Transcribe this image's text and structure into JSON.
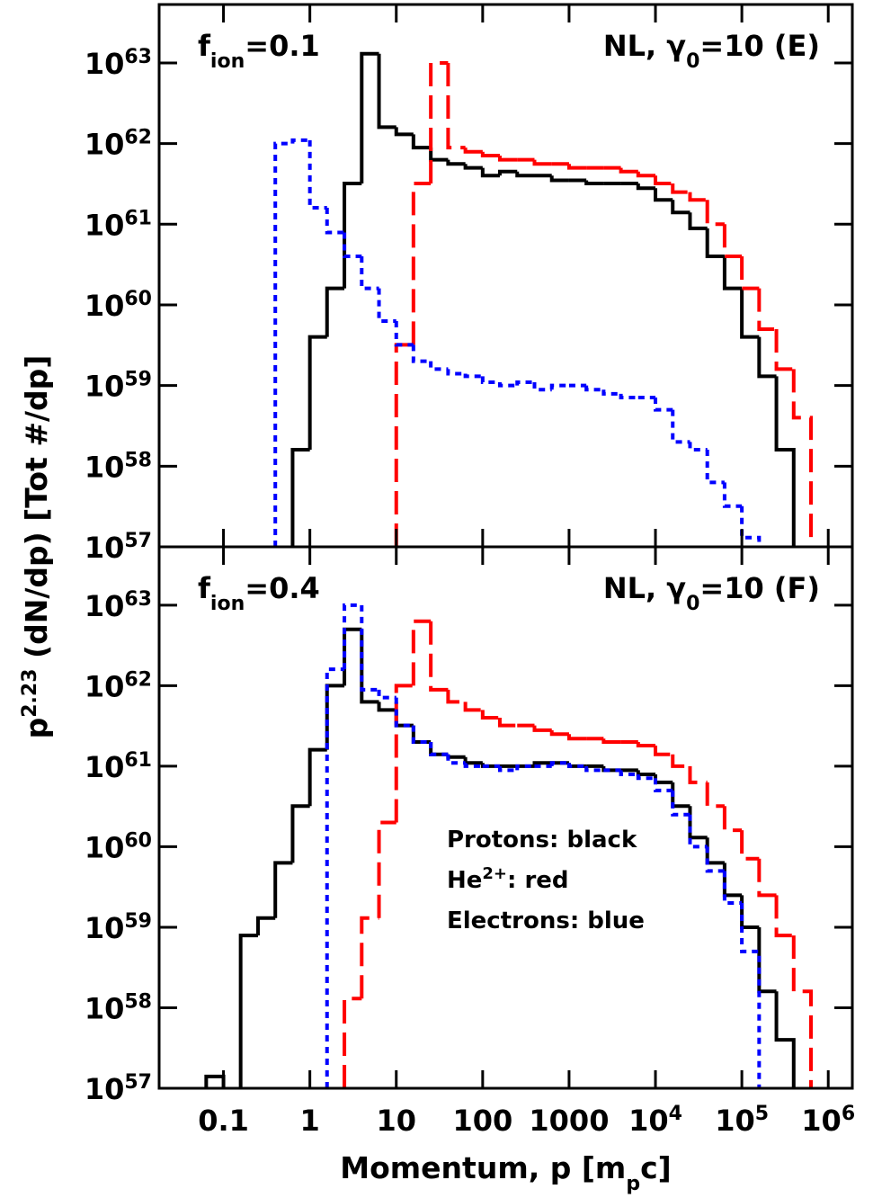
{
  "chart_data": [
    {
      "type": "histogram",
      "panel_label": [
        {
          "text": "f"
        },
        {
          "text": "ion",
          "shift": "sub"
        },
        {
          "text": "=0.1"
        }
      ],
      "title": [
        {
          "text": "NL, γ"
        },
        {
          "text": "0",
          "shift": "sub"
        },
        {
          "text": "=10 (E)"
        }
      ],
      "ylabel": [
        {
          "text": "p"
        },
        {
          "text": "2.23",
          "shift": "super"
        },
        {
          "text": " (dN/dp) [Tot #/dp]"
        }
      ],
      "xlog": true,
      "ylog": true,
      "xlim": [
        0.018,
        1900000
      ],
      "ylim": [
        1e+57,
        5.3e+63
      ],
      "xticks": [
        0.1,
        1,
        10,
        100,
        1000,
        {
          "value": 10000,
          "label": "10",
          "exponent": "4"
        },
        {
          "value": 100000,
          "label": "10",
          "exponent": "5"
        },
        {
          "value": 1000000,
          "label": "10",
          "exponent": "6"
        }
      ],
      "xticklabels": false,
      "yticks": [
        {
          "value": 1e+57,
          "label": "10",
          "exponent": "57"
        },
        {
          "value": 1e+58,
          "label": "10",
          "exponent": "58"
        },
        {
          "value": 1e+59,
          "label": "10",
          "exponent": "59"
        },
        {
          "value": 1e+60,
          "label": "10",
          "exponent": "60"
        },
        {
          "value": 1e+61,
          "label": "10",
          "exponent": "61"
        },
        {
          "value": 1e+62,
          "label": "10",
          "exponent": "62"
        },
        {
          "value": 1e+63,
          "label": "10",
          "exponent": "63"
        }
      ],
      "bins": [
        0.0631,
        0.1,
        0.158,
        0.251,
        0.398,
        0.631,
        1,
        1.58,
        2.51,
        3.98,
        6.31,
        10,
        15.8,
        25.1,
        39.8,
        63.1,
        100,
        158,
        251,
        398,
        631,
        1000,
        1585,
        2512,
        3981,
        6310,
        10000,
        15849,
        25119,
        39811,
        63096,
        100000,
        158489,
        251189,
        398107,
        630957
      ],
      "series": [
        {
          "color": "#000000",
          "linestyle": "solid",
          "values": [
            null,
            null,
            null,
            null,
            null,
            1.6e+58,
            4e+59,
            1.6e+60,
            3.2e+61,
            1.3e+63,
            1.6e+62,
            1.3e+62,
            8.9e+61,
            6.3e+61,
            5.6e+61,
            5e+61,
            4e+61,
            4.5e+61,
            4e+61,
            4e+61,
            3.5e+61,
            3.5e+61,
            3.2e+61,
            3.2e+61,
            3.2e+61,
            2.8e+61,
            2e+61,
            1.4e+61,
            8.9e+60,
            4e+60,
            1.6e+60,
            4e+59,
            1.3e+59,
            1.6e+58,
            null
          ]
        },
        {
          "color": "#ff0000",
          "linestyle": "dashed",
          "values": [
            null,
            null,
            null,
            null,
            null,
            null,
            null,
            null,
            null,
            null,
            null,
            3.2e+59,
            3.2e+61,
            1e+63,
            8.9e+61,
            7.9e+61,
            7.1e+61,
            6.3e+61,
            6.3e+61,
            5.6e+61,
            5.6e+61,
            5e+61,
            5e+61,
            5e+61,
            4.5e+61,
            4e+61,
            3.2e+61,
            2.5e+61,
            2e+61,
            1e+61,
            4e+60,
            1.6e+60,
            5e+59,
            1.6e+59,
            4e+58
          ]
        },
        {
          "color": "#0000ff",
          "linestyle": "dotted",
          "values": [
            null,
            null,
            null,
            null,
            1e+62,
            1.1e+62,
            1.6e+61,
            7.9e+60,
            4e+60,
            1.6e+60,
            6.3e+59,
            3.2e+59,
            2e+59,
            1.6e+59,
            1.4e+59,
            1.3e+59,
            1.1e+59,
            1e+59,
            1.1e+59,
            8.9e+58,
            1e+59,
            1e+59,
            8.9e+58,
            7.9e+58,
            7.1e+58,
            7.1e+58,
            5e+58,
            2e+58,
            1.6e+58,
            6.3e+57,
            3.2e+57,
            1.3e+57,
            null,
            null,
            null
          ]
        }
      ]
    },
    {
      "type": "histogram",
      "panel_label": [
        {
          "text": "f"
        },
        {
          "text": "ion",
          "shift": "sub"
        },
        {
          "text": "=0.4"
        }
      ],
      "title": [
        {
          "text": "NL, γ"
        },
        {
          "text": "0",
          "shift": "sub"
        },
        {
          "text": "=10 (F)"
        }
      ],
      "xlabel": [
        {
          "text": "Momentum, p [m"
        },
        {
          "text": "p",
          "shift": "sub"
        },
        {
          "text": "c]"
        }
      ],
      "notes": [
        [
          {
            "text": "Protons: black"
          }
        ],
        [
          {
            "text": "He"
          },
          {
            "text": "2+",
            "shift": "super"
          },
          {
            "text": ": red"
          }
        ],
        [
          {
            "text": "Electrons: blue"
          }
        ]
      ],
      "xlog": true,
      "ylog": true,
      "xlim": [
        0.018,
        1900000
      ],
      "ylim": [
        1e+57,
        5.3e+63
      ],
      "xticks": [
        0.1,
        1,
        10,
        100,
        1000,
        {
          "value": 10000,
          "label": "10",
          "exponent": "4"
        },
        {
          "value": 100000,
          "label": "10",
          "exponent": "5"
        },
        {
          "value": 1000000,
          "label": "10",
          "exponent": "6"
        }
      ],
      "xticklabels": true,
      "yticks": [
        {
          "value": 1e+57,
          "label": "10",
          "exponent": "57"
        },
        {
          "value": 1e+58,
          "label": "10",
          "exponent": "58"
        },
        {
          "value": 1e+59,
          "label": "10",
          "exponent": "59"
        },
        {
          "value": 1e+60,
          "label": "10",
          "exponent": "60"
        },
        {
          "value": 1e+61,
          "label": "10",
          "exponent": "61"
        },
        {
          "value": 1e+62,
          "label": "10",
          "exponent": "62"
        },
        {
          "value": 1e+63,
          "label": "10",
          "exponent": "63"
        }
      ],
      "bins": [
        0.0631,
        0.1,
        0.158,
        0.251,
        0.398,
        0.631,
        1,
        1.58,
        2.51,
        3.98,
        6.31,
        10,
        15.8,
        25.1,
        39.8,
        63.1,
        100,
        158,
        251,
        398,
        631,
        1000,
        1585,
        2512,
        3981,
        6310,
        10000,
        15849,
        25119,
        39811,
        63096,
        100000,
        158489,
        251189,
        398107,
        630957
      ],
      "series": [
        {
          "color": "#000000",
          "linestyle": "solid",
          "values": [
            1.4e+57,
            null,
            7.9e+58,
            1.3e+59,
            6.3e+59,
            3.2e+60,
            1.6e+61,
            1e+62,
            5e+62,
            6.3e+61,
            5e+61,
            3.2e+61,
            2e+61,
            1.4e+61,
            1.3e+61,
            1.1e+61,
            1e+61,
            1e+61,
            1e+61,
            1.1e+61,
            1.1e+61,
            1e+61,
            1e+61,
            8.9e+60,
            8.9e+60,
            7.9e+60,
            6.3e+60,
            3.2e+60,
            1.3e+60,
            6.3e+59,
            2.5e+59,
            1e+59,
            1.6e+58,
            4e+57,
            null
          ]
        },
        {
          "color": "#ff0000",
          "linestyle": "dashed",
          "values": [
            null,
            null,
            null,
            null,
            null,
            null,
            null,
            null,
            1.3e+58,
            1.3e+59,
            2e+60,
            1e+62,
            6.3e+62,
            8.9e+61,
            6.3e+61,
            5e+61,
            4e+61,
            3.2e+61,
            3.2e+61,
            2.8e+61,
            2.5e+61,
            2.2e+61,
            2.2e+61,
            2e+61,
            2e+61,
            1.8e+61,
            1.4e+61,
            1e+61,
            6.3e+60,
            3.2e+60,
            1.6e+60,
            7.1e+59,
            2.5e+59,
            7.9e+58,
            1.6e+58
          ]
        },
        {
          "color": "#0000ff",
          "linestyle": "dotted",
          "values": [
            null,
            null,
            null,
            null,
            null,
            null,
            null,
            1.6e+62,
            1e+63,
            8.9e+61,
            7.1e+61,
            3.2e+61,
            2e+61,
            1.4e+61,
            1.1e+61,
            1e+61,
            1e+61,
            8.9e+60,
            1e+61,
            1e+61,
            1.1e+61,
            1e+61,
            8.9e+60,
            8.9e+60,
            7.9e+60,
            7.1e+60,
            5e+60,
            2.5e+60,
            1e+60,
            5e+59,
            2e+59,
            5e+58,
            null,
            null,
            null
          ]
        }
      ]
    }
  ]
}
